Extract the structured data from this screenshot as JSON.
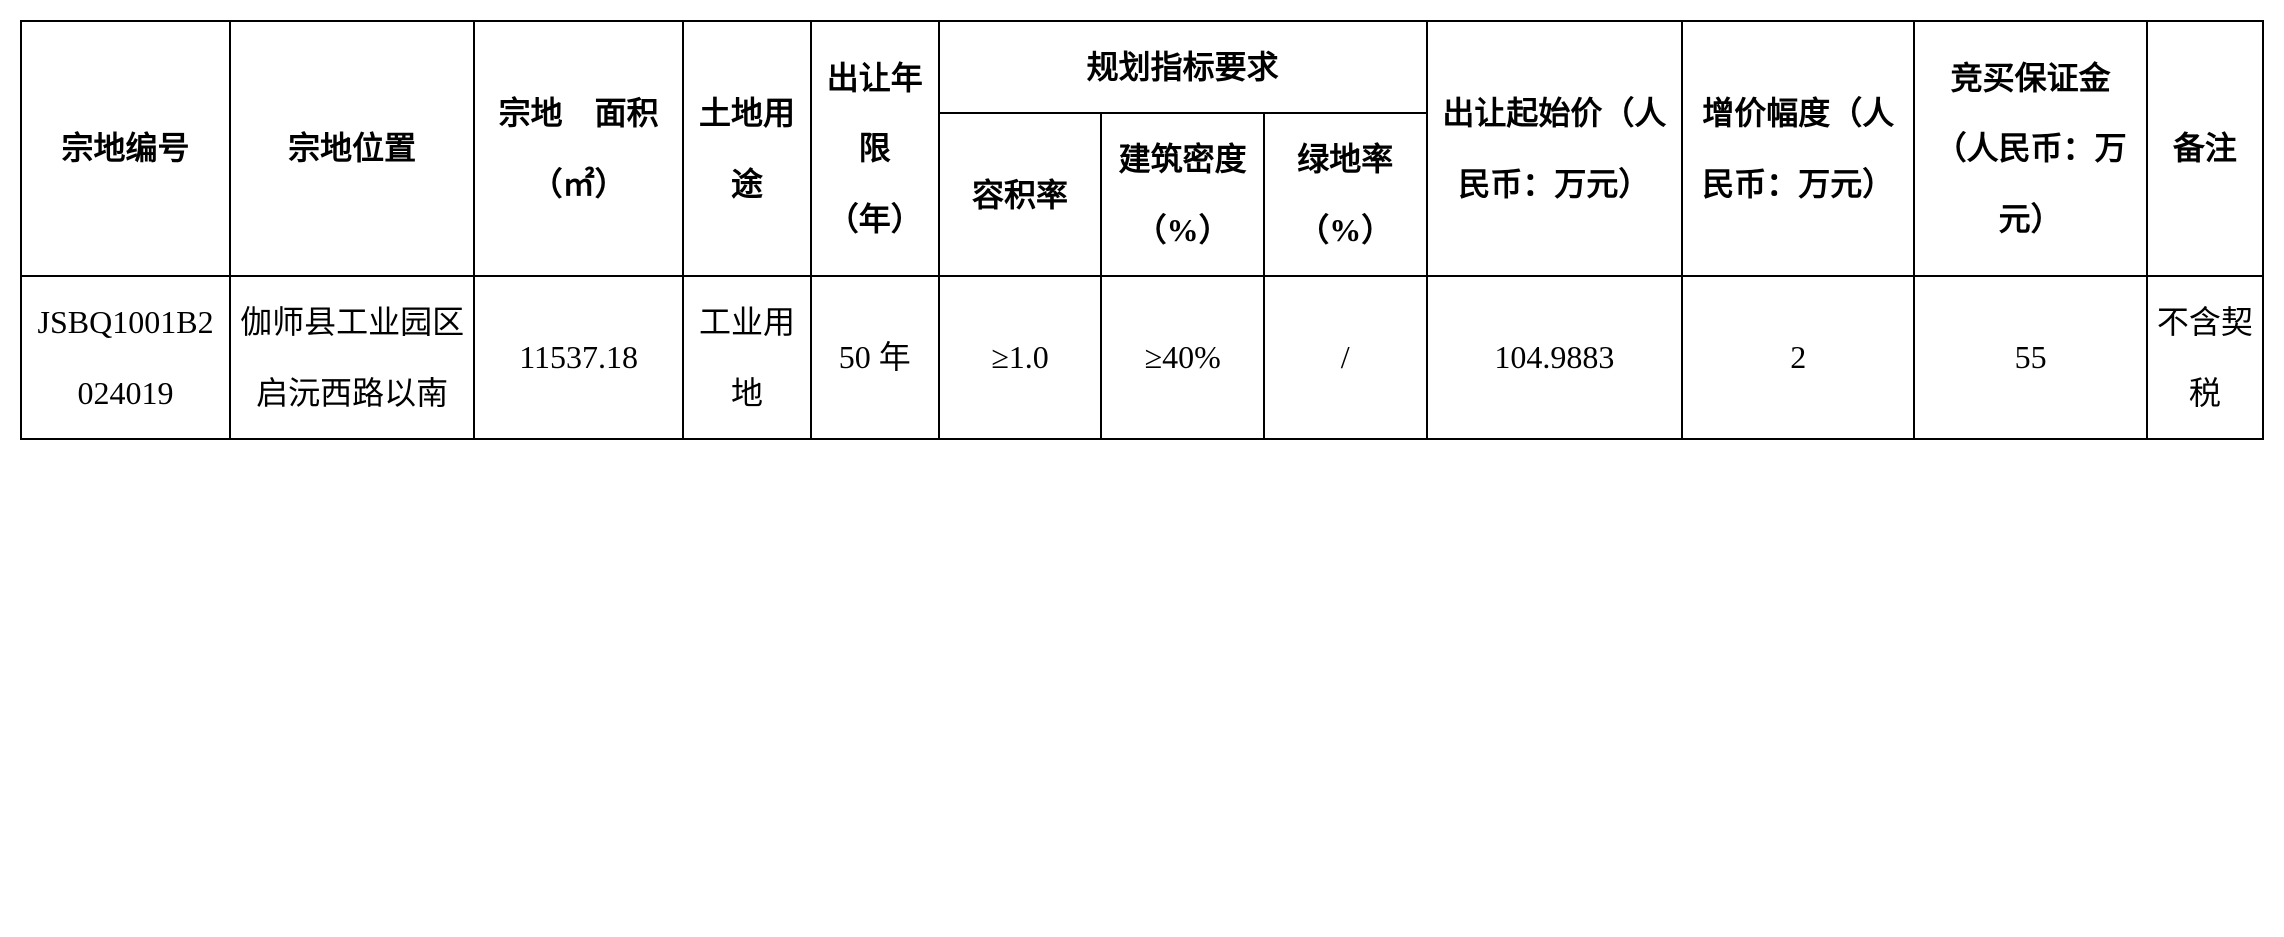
{
  "table": {
    "headers": {
      "parcel_id": "宗地编号",
      "location": "宗地位置",
      "area": "宗地　面积（㎡）",
      "land_use": "土地用途",
      "years": "出让年限（年）",
      "planning_group": "规划指标要求",
      "floor_area_ratio": "容积率",
      "building_density": "建筑密度（%）",
      "green_rate": "绿地率（%）",
      "start_price": "出让起始价（人民币：万元）",
      "increment": "增价幅度（人民币：万元）",
      "deposit": "竞买保证金（人民币：万元）",
      "remark": "备注"
    },
    "rows": [
      {
        "parcel_id": "JSBQ1001B2024019",
        "location": "伽师县工业园区启沅西路以南",
        "area": "11537.18",
        "land_use": "工业用地",
        "years": "50 年",
        "floor_area_ratio": "≥1.0",
        "building_density": "≥40%",
        "green_rate": "/",
        "start_price": "104.9883",
        "increment": "2",
        "deposit": "55",
        "remark": "不含契税"
      }
    ],
    "style": {
      "border_color": "#000000",
      "background_color": "#ffffff",
      "text_color": "#000000",
      "font_size": 32,
      "border_width": 2,
      "line_height": 2.2
    }
  }
}
